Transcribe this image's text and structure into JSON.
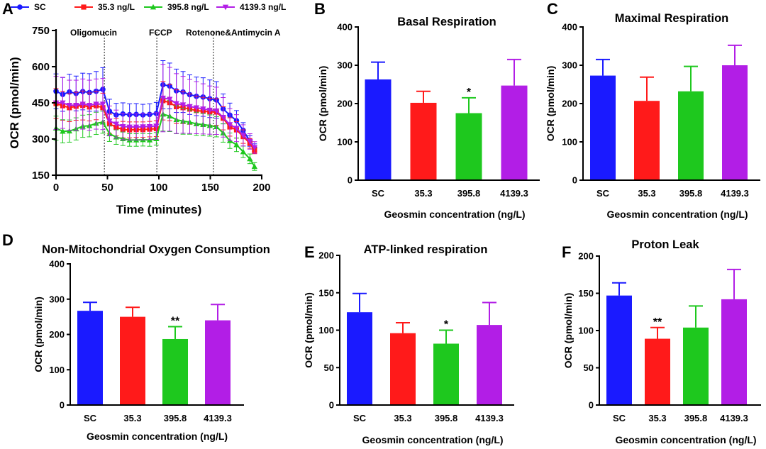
{
  "colors": {
    "SC": "#1a1aff",
    "35.3": "#ff1a1a",
    "395.8": "#1ec81e",
    "4139.3": "#b21ee6"
  },
  "chart_data": [
    {
      "panel": "A",
      "type": "line",
      "title": "",
      "xlabel": "Time (minutes)",
      "ylabel": "OCR (pmol/min)",
      "xlim": [
        0,
        200
      ],
      "ylim": [
        150,
        750
      ],
      "xticks": [
        "0",
        "50",
        "100",
        "150",
        "200"
      ],
      "yticks": [
        "150",
        "300",
        "450",
        "600",
        "750"
      ],
      "legend": {
        "position": "top",
        "entries": [
          "SC",
          "35.3 ng/L",
          "395.8 ng/L",
          "4139.3 ng/L"
        ]
      },
      "injections": [
        {
          "label": "Oligomucin",
          "x": 47
        },
        {
          "label": "FCCP",
          "x": 98
        },
        {
          "label": "Rotenone&Antimycin A",
          "x": 153
        }
      ],
      "x": [
        0,
        6.5,
        13,
        19.5,
        26,
        32.5,
        39,
        45.5,
        52,
        58.5,
        65,
        71.5,
        78,
        84.5,
        91,
        97.5,
        104,
        110.5,
        117,
        123.5,
        130,
        136.5,
        143,
        149.5,
        156,
        162.5,
        169,
        175.5,
        182,
        188.5,
        193
      ],
      "series": [
        {
          "name": "SC",
          "key": "SC",
          "marker": "circle",
          "values": [
            498,
            485,
            495,
            489,
            497,
            493,
            498,
            506,
            415,
            400,
            404,
            401,
            402,
            400,
            402,
            406,
            525,
            520,
            500,
            495,
            484,
            477,
            474,
            467,
            462,
            425,
            399,
            376,
            336,
            292,
            264
          ],
          "errors": [
            72,
            70,
            74,
            72,
            76,
            78,
            82,
            90,
            50,
            48,
            46,
            45,
            45,
            44,
            44,
            46,
            100,
            95,
            90,
            85,
            82,
            80,
            80,
            78,
            76,
            62,
            50,
            42,
            32,
            22,
            16
          ]
        },
        {
          "name": "35.3 ng/L",
          "key": "35.3",
          "marker": "square",
          "values": [
            447,
            438,
            430,
            436,
            439,
            433,
            438,
            430,
            363,
            349,
            339,
            338,
            339,
            339,
            341,
            343,
            459,
            451,
            434,
            430,
            424,
            418,
            415,
            413,
            412,
            386,
            350,
            338,
            310,
            282,
            253
          ],
          "errors": [
            62,
            60,
            58,
            58,
            60,
            58,
            58,
            60,
            40,
            36,
            34,
            33,
            32,
            32,
            32,
            33,
            80,
            75,
            70,
            66,
            63,
            60,
            58,
            56,
            55,
            48,
            38,
            34,
            28,
            20,
            14
          ]
        },
        {
          "name": "395.8 ng/L",
          "key": "395.8",
          "marker": "triangle-up",
          "values": [
            345,
            332,
            333,
            342,
            353,
            355,
            365,
            370,
            322,
            308,
            301,
            296,
            296,
            297,
            296,
            301,
            403,
            395,
            380,
            374,
            370,
            363,
            360,
            356,
            351,
            325,
            293,
            276,
            247,
            218,
            186
          ],
          "errors": [
            50,
            48,
            46,
            46,
            46,
            46,
            46,
            46,
            32,
            30,
            28,
            26,
            26,
            26,
            26,
            26,
            70,
            64,
            58,
            54,
            50,
            48,
            46,
            44,
            42,
            38,
            32,
            28,
            24,
            20,
            16
          ]
        },
        {
          "name": "4139.3 ng/L",
          "key": "4139.3",
          "marker": "triangle-down",
          "values": [
            450,
            450,
            440,
            440,
            445,
            440,
            445,
            445,
            375,
            362,
            352,
            350,
            350,
            351,
            352,
            354,
            470,
            465,
            447,
            442,
            435,
            430,
            425,
            420,
            417,
            390,
            360,
            345,
            315,
            290,
            265
          ],
          "errors": [
            110,
            106,
            104,
            104,
            104,
            104,
            104,
            106,
            62,
            58,
            55,
            54,
            54,
            54,
            54,
            55,
            140,
            132,
            124,
            118,
            112,
            108,
            104,
            100,
            98,
            82,
            66,
            56,
            44,
            32,
            24
          ]
        }
      ]
    },
    {
      "panel": "B",
      "type": "bar",
      "title": "Basal Respiration",
      "xlabel": "Geosmin concentration (ng/L)",
      "ylabel": "OCR (pmol/min)",
      "ylim": [
        0,
        400
      ],
      "yticks": [
        "0",
        "100",
        "200",
        "300",
        "400"
      ],
      "categories": [
        "SC",
        "35.3",
        "395.8",
        "4139.3"
      ],
      "values": [
        263,
        202,
        175,
        247
      ],
      "errors": [
        45,
        30,
        40,
        68
      ],
      "significance": [
        "",
        "",
        "*",
        ""
      ]
    },
    {
      "panel": "C",
      "type": "bar",
      "title": "Maximal Respiration",
      "xlabel": "Geosmin concentration (ng/L)",
      "ylabel": "OCR (pmol/min)",
      "ylim": [
        0,
        400
      ],
      "yticks": [
        "0",
        "100",
        "200",
        "300",
        "400"
      ],
      "categories": [
        "SC",
        "35.3",
        "395.8",
        "4139.3"
      ],
      "values": [
        273,
        207,
        232,
        300
      ],
      "errors": [
        42,
        62,
        65,
        52
      ],
      "significance": [
        "",
        "",
        "",
        ""
      ]
    },
    {
      "panel": "D",
      "type": "bar",
      "title": "Non-Mitochondrial Oxygen Consumption",
      "xlabel": "Geosmin concentration (ng/L)",
      "ylabel": "OCR (pmol/min)",
      "ylim": [
        0,
        400
      ],
      "yticks": [
        "0",
        "100",
        "200",
        "300",
        "400"
      ],
      "categories": [
        "SC",
        "35.3",
        "395.8",
        "4139.3"
      ],
      "values": [
        267,
        250,
        187,
        240
      ],
      "errors": [
        24,
        27,
        35,
        45
      ],
      "significance": [
        "",
        "",
        "**",
        ""
      ]
    },
    {
      "panel": "E",
      "type": "bar",
      "title": "ATP-linked respiration",
      "xlabel": "Geosmin concentration (ng/L)",
      "ylabel": "OCR (pmol/min)",
      "ylim": [
        0,
        200
      ],
      "yticks": [
        "0",
        "50",
        "100",
        "150",
        "200"
      ],
      "categories": [
        "SC",
        "35.3",
        "395.8",
        "4139.3"
      ],
      "values": [
        124,
        96,
        82,
        107
      ],
      "errors": [
        25,
        14,
        18,
        30
      ],
      "significance": [
        "",
        "",
        "*",
        ""
      ]
    },
    {
      "panel": "F",
      "type": "bar",
      "title": "Proton Leak",
      "xlabel": "Geosmin concentration (ng/L)",
      "ylabel": "OCR (pmol/min)",
      "ylim": [
        0,
        200
      ],
      "yticks": [
        "0",
        "50",
        "100",
        "150",
        "200"
      ],
      "categories": [
        "SC",
        "35.3",
        "395.8",
        "4139.3"
      ],
      "values": [
        147,
        89,
        104,
        142
      ],
      "errors": [
        17,
        15,
        29,
        40
      ],
      "significance": [
        "",
        "**",
        "",
        ""
      ]
    }
  ]
}
